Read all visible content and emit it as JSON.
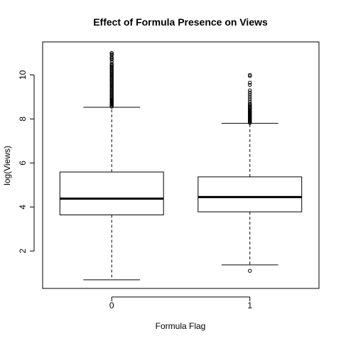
{
  "chart_data": {
    "type": "boxplot",
    "title": "Effect of Formula Presence on Views",
    "xlabel": "Formula Flag",
    "ylabel": "log(Views)",
    "categories": [
      "0",
      "1"
    ],
    "ylim": [
      0.3,
      11.5
    ],
    "yticks": [
      2,
      4,
      6,
      8,
      10
    ],
    "grid": false,
    "legend": "none",
    "boxes": [
      {
        "category": "0",
        "whisker_low": 0.69,
        "q1": 3.64,
        "median": 4.38,
        "q3": 5.59,
        "whisker_high": 8.53,
        "outliers": [
          8.56,
          8.6,
          8.64,
          8.68,
          8.72,
          8.76,
          8.8,
          8.84,
          8.88,
          8.92,
          8.96,
          9.0,
          9.05,
          9.1,
          9.15,
          9.2,
          9.25,
          9.3,
          9.35,
          9.4,
          9.45,
          9.5,
          9.55,
          9.6,
          9.65,
          9.7,
          9.75,
          9.8,
          9.85,
          9.9,
          9.95,
          10.0,
          10.05,
          10.1,
          10.15,
          10.2,
          10.25,
          10.3,
          10.35,
          10.4,
          10.45,
          10.5,
          10.6,
          10.7,
          10.75,
          10.8,
          10.9,
          10.95,
          11.0
        ]
      },
      {
        "category": "1",
        "whisker_low": 1.37,
        "q1": 3.78,
        "median": 4.45,
        "q3": 5.37,
        "whisker_high": 7.8,
        "outliers": [
          1.1,
          7.82,
          7.86,
          7.9,
          7.94,
          7.98,
          8.02,
          8.06,
          8.1,
          8.14,
          8.18,
          8.22,
          8.26,
          8.3,
          8.34,
          8.38,
          8.42,
          8.46,
          8.5,
          8.55,
          8.6,
          8.65,
          8.7,
          8.8,
          8.9,
          9.0,
          9.1,
          9.2,
          9.3,
          9.55,
          9.65,
          9.95,
          10.0
        ]
      }
    ]
  }
}
